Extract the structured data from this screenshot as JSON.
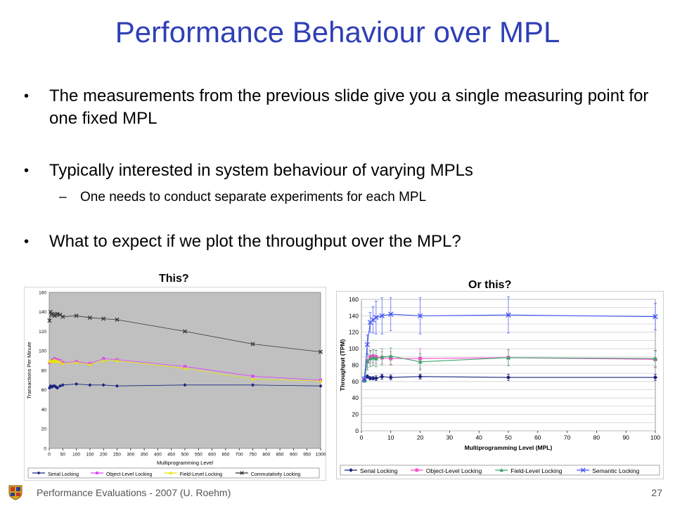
{
  "slide": {
    "title": "Performance Behaviour over MPL",
    "bullets": [
      "The measurements from the previous slide give you a single measuring point for one fixed MPL",
      "Typically interested in system behaviour of varying MPLs",
      "What to expect if we plot the throughput over the MPL?"
    ],
    "sub_bullet": "One needs to conduct separate experiments for each MPL",
    "caption_left": "This?",
    "caption_right": "Or this?",
    "footer": "Performance Evaluations - 2007 (U. Roehm)",
    "page_number": "27"
  },
  "chart_data": [
    {
      "type": "line",
      "xlabel": "Multiprogramming Level",
      "ylabel": "Transactions Per Minute",
      "xlim": [
        0,
        1000
      ],
      "ylim": [
        0,
        160
      ],
      "xticks": [
        0,
        50,
        100,
        150,
        200,
        250,
        300,
        350,
        400,
        450,
        500,
        550,
        600,
        650,
        700,
        750,
        800,
        850,
        900,
        950,
        1000
      ],
      "yticks": [
        0,
        20,
        40,
        60,
        80,
        100,
        120,
        140,
        160
      ],
      "grid": false,
      "plot_background": "#c0c0c0",
      "legend_position": "bottom",
      "series": [
        {
          "name": "Serial Locking",
          "color": "#1a237e",
          "marker": "diamond",
          "x": [
            1,
            5,
            10,
            15,
            20,
            25,
            30,
            40,
            50,
            100,
            150,
            200,
            250,
            500,
            750,
            1000
          ],
          "y": [
            62,
            64,
            63,
            64,
            64,
            63,
            62,
            64,
            65,
            66,
            65,
            65,
            64,
            65,
            65,
            64
          ]
        },
        {
          "name": "Object-Level Locking",
          "color": "#e040fb",
          "marker": "square",
          "x": [
            1,
            5,
            10,
            15,
            20,
            25,
            30,
            40,
            50,
            100,
            150,
            200,
            250,
            500,
            750,
            1000
          ],
          "y": [
            88,
            89,
            90,
            91,
            92,
            90,
            91,
            90,
            88,
            89,
            87,
            92,
            91,
            84,
            74,
            70
          ]
        },
        {
          "name": "Field-Level Locking",
          "color": "#e6e600",
          "marker": "triangle",
          "x": [
            1,
            5,
            10,
            15,
            20,
            25,
            30,
            40,
            50,
            100,
            150,
            200,
            250,
            500,
            750,
            1000
          ],
          "y": [
            89,
            90,
            89,
            90,
            91,
            89,
            90,
            89,
            87,
            88,
            86,
            90,
            90,
            82,
            71,
            69
          ]
        },
        {
          "name": "Commutativity Locking",
          "color": "#333333",
          "marker": "x",
          "x": [
            1,
            5,
            10,
            15,
            20,
            25,
            30,
            40,
            50,
            100,
            150,
            200,
            250,
            500,
            750,
            1000
          ],
          "y": [
            131,
            140,
            138,
            137,
            136,
            137,
            138,
            137,
            135,
            136,
            134,
            133,
            132,
            120,
            107,
            99
          ]
        }
      ]
    },
    {
      "type": "line",
      "xlabel": "Multiprogramming Level (MPL)",
      "ylabel": "Throughput (TPM)",
      "xlim": [
        0,
        100
      ],
      "ylim": [
        0,
        160
      ],
      "xticks": [
        0,
        10,
        20,
        30,
        40,
        50,
        60,
        70,
        80,
        90,
        100
      ],
      "yticks": [
        0,
        10,
        20,
        30,
        40,
        50,
        60,
        70,
        80,
        90,
        100,
        110,
        120,
        130,
        140,
        150,
        160
      ],
      "ytick_labels_every": 20,
      "grid": true,
      "error_bars": true,
      "legend_position": "bottom",
      "series": [
        {
          "name": "Serial Locking",
          "color": "#1a237e",
          "marker": "diamond",
          "x": [
            1,
            2,
            3,
            4,
            5,
            7,
            10,
            20,
            50,
            100
          ],
          "y": [
            62,
            66,
            64,
            64,
            64,
            66,
            65,
            66,
            65,
            65
          ]
        },
        {
          "name": "Object-Level Locking",
          "color": "#ff4dd2",
          "marker": "square",
          "x": [
            1,
            2,
            3,
            4,
            5,
            7,
            10,
            20,
            50,
            100
          ],
          "y": [
            62,
            85,
            90,
            91,
            90,
            89,
            88,
            88,
            89,
            87
          ]
        },
        {
          "name": "Field-Level Locking",
          "color": "#3fa36e",
          "marker": "triangle",
          "x": [
            1,
            2,
            3,
            4,
            5,
            7,
            10,
            20,
            50,
            100
          ],
          "y": [
            61,
            84,
            88,
            89,
            88,
            90,
            91,
            84,
            89,
            88
          ]
        },
        {
          "name": "Semantic Locking",
          "color": "#3f51f5",
          "marker": "x",
          "x": [
            1,
            2,
            3,
            4,
            5,
            7,
            10,
            20,
            50,
            100
          ],
          "y": [
            63,
            105,
            132,
            135,
            138,
            140,
            142,
            140,
            141,
            139
          ]
        }
      ]
    }
  ]
}
